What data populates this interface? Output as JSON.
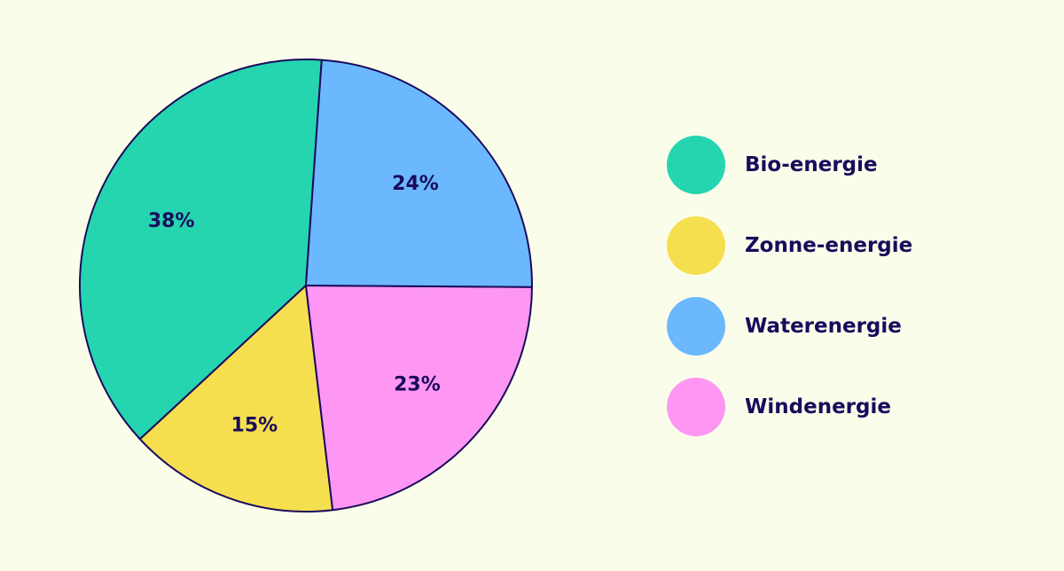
{
  "chart_data": {
    "type": "pie",
    "slices": [
      {
        "label": "Bio-energie",
        "value": 38,
        "value_label": "38%",
        "color": "#25d5b0"
      },
      {
        "label": "Zonne-energie",
        "value": 15,
        "value_label": "15%",
        "color": "#f6df4e"
      },
      {
        "label": "Windenergie",
        "value": 23,
        "value_label": "23%",
        "color": "#fe97f3"
      },
      {
        "label": "Waterenergie",
        "value": 24,
        "value_label": "24%",
        "color": "#6bb8fe"
      }
    ],
    "legend": [
      {
        "label": "Bio-energie",
        "color": "#25d5b0"
      },
      {
        "label": "Zonne-energie",
        "color": "#f6df4e"
      },
      {
        "label": "Waterenergie",
        "color": "#6bb8fe"
      },
      {
        "label": "Windenergie",
        "color": "#fe97f3"
      }
    ],
    "legend_position": "right",
    "outline_color": "#1a0b5c",
    "background": "#fbfdeb"
  }
}
